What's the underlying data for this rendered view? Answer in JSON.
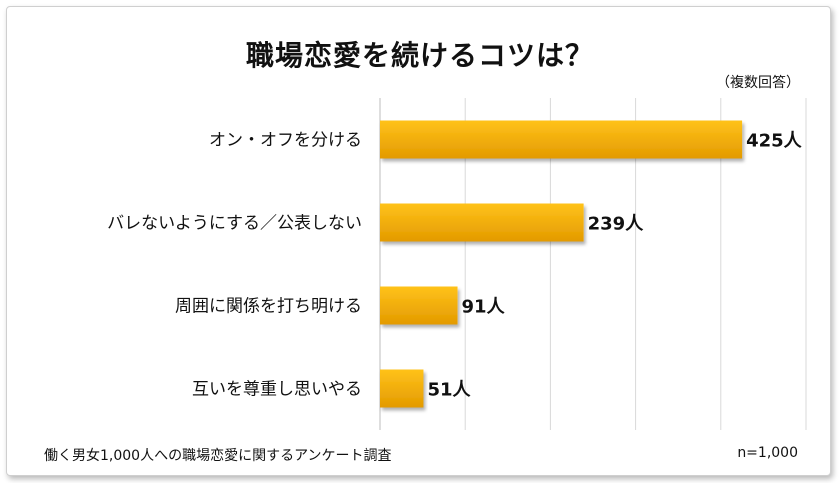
{
  "chart_data": {
    "type": "bar",
    "orientation": "horizontal",
    "title": "職場恋愛を続けるコツは？",
    "subtitle": "（複数回答）",
    "categories": [
      "オン・オフを分ける",
      "バレないようにする／公表しない",
      "周囲に関係を打ち明ける",
      "互いを尊重し思いやる"
    ],
    "values": [
      425,
      239,
      91,
      51
    ],
    "value_labels": [
      "425人",
      "239人",
      "91人",
      "51人"
    ],
    "xlim": [
      0,
      500
    ],
    "grid": true,
    "bar_color": "#f4a500"
  },
  "footer": {
    "source": "働く男女1,000人への職場恋愛に関するアンケート調査",
    "sample": "n=1,000"
  }
}
